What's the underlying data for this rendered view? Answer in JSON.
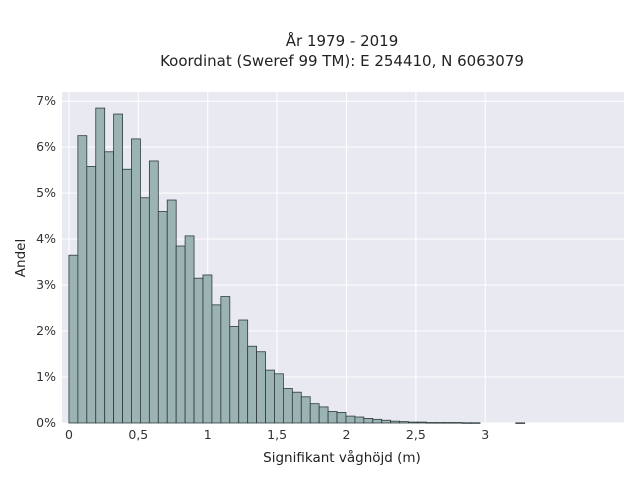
{
  "chart_data": {
    "type": "bar",
    "title_line1": "År 1979 - 2019",
    "title_line2": "Koordinat (Sweref 99 TM): E 254410, N 6063079",
    "xlabel": "Signifikant våghöjd (m)",
    "ylabel": "Andel",
    "xlim": [
      -0.05,
      4.0
    ],
    "ylim": [
      0,
      7.2
    ],
    "bin_start": 0.0,
    "bin_width": 0.0644,
    "x_ticks": [
      {
        "value": 0,
        "label": "0"
      },
      {
        "value": 0.5,
        "label": "0,5"
      },
      {
        "value": 1,
        "label": "1"
      },
      {
        "value": 1.5,
        "label": "1,5"
      },
      {
        "value": 2,
        "label": "2"
      },
      {
        "value": 2.5,
        "label": "2,5"
      },
      {
        "value": 3,
        "label": "3"
      }
    ],
    "y_ticks": [
      {
        "value": 0,
        "label": "0%"
      },
      {
        "value": 1,
        "label": "1%"
      },
      {
        "value": 2,
        "label": "2%"
      },
      {
        "value": 3,
        "label": "3%"
      },
      {
        "value": 4,
        "label": "4%"
      },
      {
        "value": 5,
        "label": "5%"
      },
      {
        "value": 6,
        "label": "6%"
      },
      {
        "value": 7,
        "label": "7%"
      }
    ],
    "values": [
      3.65,
      6.25,
      5.58,
      6.85,
      5.9,
      6.72,
      5.52,
      6.18,
      4.9,
      5.7,
      4.6,
      4.85,
      3.85,
      4.07,
      3.15,
      3.22,
      2.57,
      2.75,
      2.1,
      2.24,
      1.67,
      1.55,
      1.15,
      1.07,
      0.75,
      0.67,
      0.57,
      0.42,
      0.35,
      0.25,
      0.23,
      0.15,
      0.13,
      0.1,
      0.08,
      0.06,
      0.04,
      0.03,
      0.02,
      0.02,
      0.01,
      0.01,
      0.01,
      0.01,
      0.005,
      0.005,
      0.0,
      0.0,
      0.0,
      0.0,
      0.003,
      0.0,
      0.0,
      0.0,
      0.0,
      0.0,
      0.0,
      0.0,
      0.0,
      0.0,
      0.0,
      0.0
    ],
    "grid": true,
    "colors": {
      "bar_fill": "#9bb3b3",
      "bar_stroke": "#2e3b3b",
      "plot_bg": "#e9e9f1",
      "grid": "#ffffff"
    }
  }
}
